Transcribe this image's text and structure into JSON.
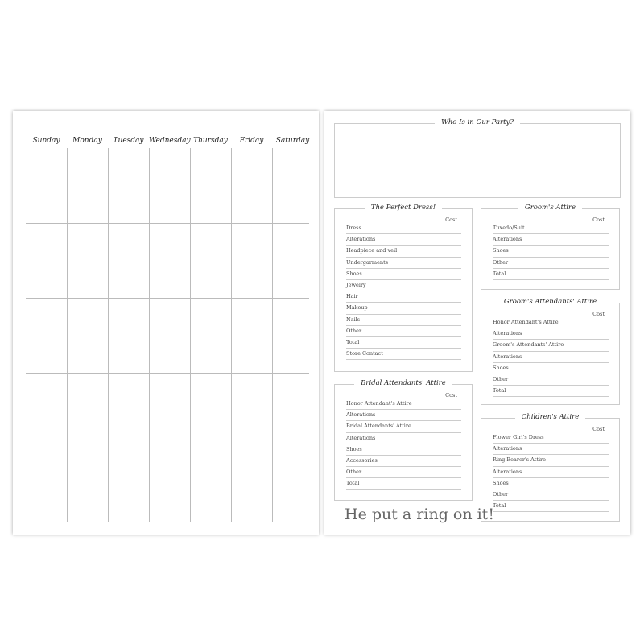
{
  "calendar": {
    "days": [
      "Sunday",
      "Monday",
      "Tuesday",
      "Wednesday",
      "Thursday",
      "Friday",
      "Saturday"
    ]
  },
  "party": {
    "title": "Who Is in Our Party?"
  },
  "sections": [
    {
      "id": "perfect-dress",
      "title": "The Perfect Dress!",
      "cost_label": "Cost",
      "items": [
        "Dress",
        "Alterations",
        "Headpiece and veil",
        "Undergarments",
        "Shoes",
        "Jewelry",
        "Hair",
        "Makeup",
        "Nails",
        "Other",
        "Total",
        "Store Contact"
      ]
    },
    {
      "id": "grooms-attire",
      "title": "Groom's Attire",
      "cost_label": "Cost",
      "items": [
        "Tuxedo/Suit",
        "Alterations",
        "Shoes",
        "Other",
        "Total"
      ]
    },
    {
      "id": "grooms-attendants-attire",
      "title": "Groom's Attendants' Attire",
      "cost_label": "Cost",
      "items": [
        "Honor Attendant's Attire",
        "Alterations",
        "Groom's Attendants' Attire",
        "Alterations",
        "Shoes",
        "Other",
        "Total"
      ]
    },
    {
      "id": "bridal-attendants-attire",
      "title": "Bridal Attendants' Attire",
      "cost_label": "Cost",
      "items": [
        "Honor Attendant's Attire",
        "Alterations",
        "Bridal Attendants' Attire",
        "Alterations",
        "Shoes",
        "Accessories",
        "Other",
        "Total"
      ]
    },
    {
      "id": "childrens-attire",
      "title": "Children's Attire",
      "cost_label": "Cost",
      "items": [
        "Flower Girl's Dress",
        "Alterations",
        "Ring Bearer's Attire",
        "Alterations",
        "Shoes",
        "Other",
        "Total"
      ]
    }
  ],
  "slogan": "He put a ring on it!"
}
